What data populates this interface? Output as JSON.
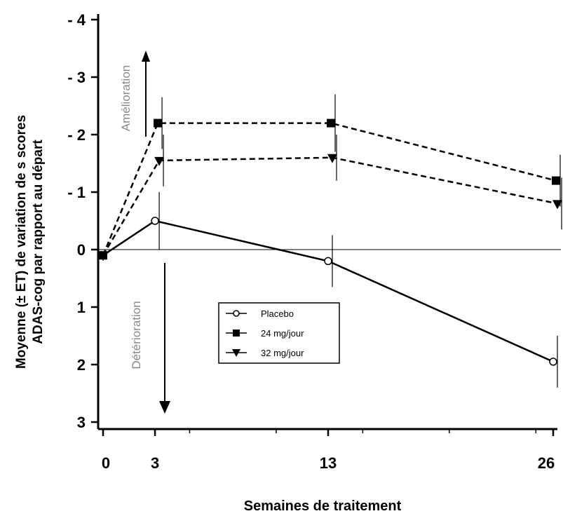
{
  "chart_data": {
    "type": "line",
    "title": "",
    "xlabel": "Semaines de traitement",
    "ylabel_line1": "Moyenne (± ET) de variation de s scores",
    "ylabel_line2": "ADAS-cog par rapport au départ",
    "x_ticks": [
      0,
      3,
      13,
      26
    ],
    "x_tick_labels": [
      "0",
      "3",
      "13",
      "26"
    ],
    "xlim": [
      0,
      26
    ],
    "y_ticks": [
      -4,
      -3,
      -2,
      -1,
      0,
      1,
      2,
      3
    ],
    "y_tick_labels": [
      "- 4",
      "- 3",
      "- 2",
      "- 1",
      "0",
      "1",
      "2",
      "3"
    ],
    "ylim": [
      3,
      -4
    ],
    "y_inverted": true,
    "reference_line_y": 0,
    "annotations": {
      "up_arrow_label": "Amélioration",
      "down_arrow_label": "Détérioration"
    },
    "series": [
      {
        "name": "Placebo",
        "line_style": "solid",
        "marker": "open-circle",
        "x": [
          0,
          3,
          13,
          26
        ],
        "y": [
          0.1,
          -0.5,
          0.2,
          1.95
        ],
        "err": [
          0.0,
          0.5,
          0.45,
          0.45
        ]
      },
      {
        "name": "24 mg/jour",
        "line_style": "dashed",
        "marker": "filled-square",
        "x": [
          0,
          3,
          13,
          26
        ],
        "y": [
          0.1,
          -2.2,
          -2.2,
          -1.2
        ],
        "err": [
          0.0,
          0.45,
          0.5,
          0.45
        ]
      },
      {
        "name": "32 mg/jour",
        "line_style": "dashed",
        "marker": "filled-triangle-down",
        "x": [
          0,
          3,
          13,
          26
        ],
        "y": [
          0.1,
          -1.55,
          -1.6,
          -0.8
        ],
        "err": [
          0.0,
          0.45,
          0.4,
          0.45
        ]
      }
    ],
    "legend_position": "lower-center",
    "grid": false
  }
}
